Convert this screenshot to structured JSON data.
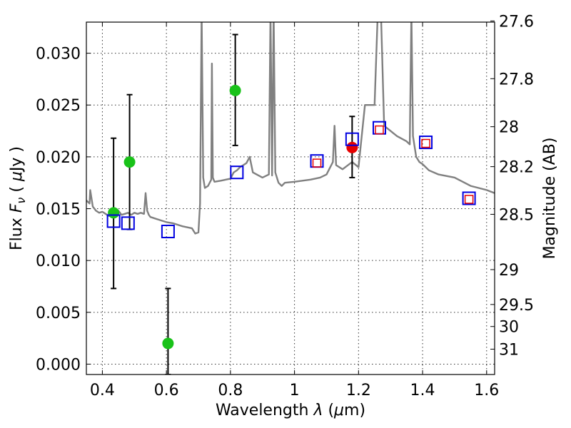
{
  "chart_data": {
    "type": "scatter",
    "xlabel": "Wavelength  λ (μm)",
    "ylabel": "Flux  F_ν  ( μJy )",
    "ylabel_parts": [
      "Flux ",
      "F",
      "ν",
      "  ( ",
      "μ",
      "Jy )"
    ],
    "xlabel_parts": [
      "Wavelength  ",
      "λ",
      " (",
      "μ",
      "m)"
    ],
    "ylabel_right": "Magnitude (AB)",
    "xlim": [
      0.35,
      1.625
    ],
    "ylim": [
      -0.001,
      0.033
    ],
    "grid": true,
    "x_ticks": [
      0.4,
      0.6,
      0.8,
      1.0,
      1.2,
      1.4,
      1.6
    ],
    "x_tick_labels": [
      "0.4",
      "0.6",
      "0.8",
      "1",
      "1.2",
      "1.4",
      "1.6"
    ],
    "y_ticks": [
      0.0,
      0.005,
      0.01,
      0.015,
      0.02,
      0.025,
      0.03
    ],
    "y_tick_labels": [
      "0.000",
      "0.005",
      "0.010",
      "0.015",
      "0.020",
      "0.025",
      "0.030"
    ],
    "right_ticks": [
      {
        "mag": 27.6,
        "label": "27.6"
      },
      {
        "mag": 27.8,
        "label": "27.8"
      },
      {
        "mag": 28.0,
        "label": "28"
      },
      {
        "mag": 28.2,
        "label": "28.2"
      },
      {
        "mag": 28.5,
        "label": "28.5"
      },
      {
        "mag": 29.0,
        "label": "29"
      },
      {
        "mag": 29.5,
        "label": "29.5"
      },
      {
        "mag": 30.0,
        "label": "30"
      },
      {
        "mag": 31.0,
        "label": "31"
      }
    ],
    "series": [
      {
        "name": "template spectrum",
        "kind": "line",
        "color": "#808080",
        "x": [
          0.35,
          0.36,
          0.362,
          0.37,
          0.38,
          0.39,
          0.4,
          0.41,
          0.42,
          0.43,
          0.44,
          0.45,
          0.46,
          0.47,
          0.48,
          0.49,
          0.5,
          0.51,
          0.52,
          0.53,
          0.535,
          0.54,
          0.545,
          0.55,
          0.57,
          0.6,
          0.62,
          0.65,
          0.68,
          0.69,
          0.7,
          0.705,
          0.71,
          0.715,
          0.72,
          0.73,
          0.74,
          0.742,
          0.745,
          0.75,
          0.77,
          0.8,
          0.81,
          0.82,
          0.83,
          0.84,
          0.85,
          0.86,
          0.87,
          0.9,
          0.92,
          0.925,
          0.93,
          0.935,
          0.94,
          0.95,
          0.96,
          0.97,
          1.0,
          1.05,
          1.08,
          1.1,
          1.12,
          1.125,
          1.13,
          1.15,
          1.18,
          1.2,
          1.22,
          1.25,
          1.26,
          1.27,
          1.28,
          1.3,
          1.32,
          1.35,
          1.36,
          1.365,
          1.37,
          1.38,
          1.39,
          1.4,
          1.42,
          1.45,
          1.5,
          1.55,
          1.6,
          1.625
        ],
        "y": [
          0.0158,
          0.0155,
          0.0168,
          0.0152,
          0.0148,
          0.0146,
          0.0147,
          0.0145,
          0.0143,
          0.0145,
          0.0146,
          0.0148,
          0.0144,
          0.0145,
          0.0146,
          0.0144,
          0.0146,
          0.0145,
          0.0146,
          0.0145,
          0.0165,
          0.0148,
          0.0144,
          0.0142,
          0.014,
          0.0137,
          0.0136,
          0.0133,
          0.0131,
          0.0126,
          0.0127,
          0.0155,
          0.034,
          0.018,
          0.017,
          0.0172,
          0.0178,
          0.029,
          0.018,
          0.0176,
          0.0177,
          0.0179,
          0.0185,
          0.0187,
          0.019,
          0.0192,
          0.0194,
          0.02,
          0.0185,
          0.018,
          0.0183,
          0.034,
          0.0182,
          0.034,
          0.0185,
          0.0175,
          0.0172,
          0.0175,
          0.0176,
          0.0178,
          0.018,
          0.0183,
          0.0195,
          0.023,
          0.0192,
          0.0188,
          0.0195,
          0.019,
          0.025,
          0.025,
          0.034,
          0.034,
          0.023,
          0.0225,
          0.022,
          0.0215,
          0.0212,
          0.034,
          0.022,
          0.02,
          0.0195,
          0.0193,
          0.0187,
          0.0183,
          0.018,
          0.0172,
          0.0168,
          0.0165
        ]
      },
      {
        "name": "detections (green)",
        "kind": "points",
        "color": "#19c219",
        "x": [
          0.435,
          0.485,
          0.605,
          0.815
        ],
        "y": [
          0.0146,
          0.0195,
          0.002,
          0.0264
        ],
        "yerr_low": [
          0.0073,
          0.013,
          -0.001,
          0.0211
        ],
        "yerr_high": [
          0.0218,
          0.026,
          0.0073,
          0.0318
        ]
      },
      {
        "name": "detection (red)",
        "kind": "points",
        "color": "#e60000",
        "x": [
          1.18
        ],
        "y": [
          0.0209
        ],
        "yerr_low": [
          0.018
        ],
        "yerr_high": [
          0.0239
        ]
      },
      {
        "name": "model photometry (blue squares)",
        "kind": "squares",
        "color": "#0000e0",
        "x": [
          0.435,
          0.48,
          0.605,
          0.82,
          1.07,
          1.18,
          1.265,
          1.41,
          1.545
        ],
        "y": [
          0.0138,
          0.0136,
          0.0128,
          0.0185,
          0.0196,
          0.0217,
          0.0228,
          0.0214,
          0.016
        ]
      },
      {
        "name": "model photometry (red squares)",
        "kind": "squares-small",
        "color": "#e60000",
        "x": [
          1.07,
          1.265,
          1.41,
          1.545
        ],
        "y": [
          0.0194,
          0.0226,
          0.0213,
          0.0159
        ]
      }
    ]
  }
}
